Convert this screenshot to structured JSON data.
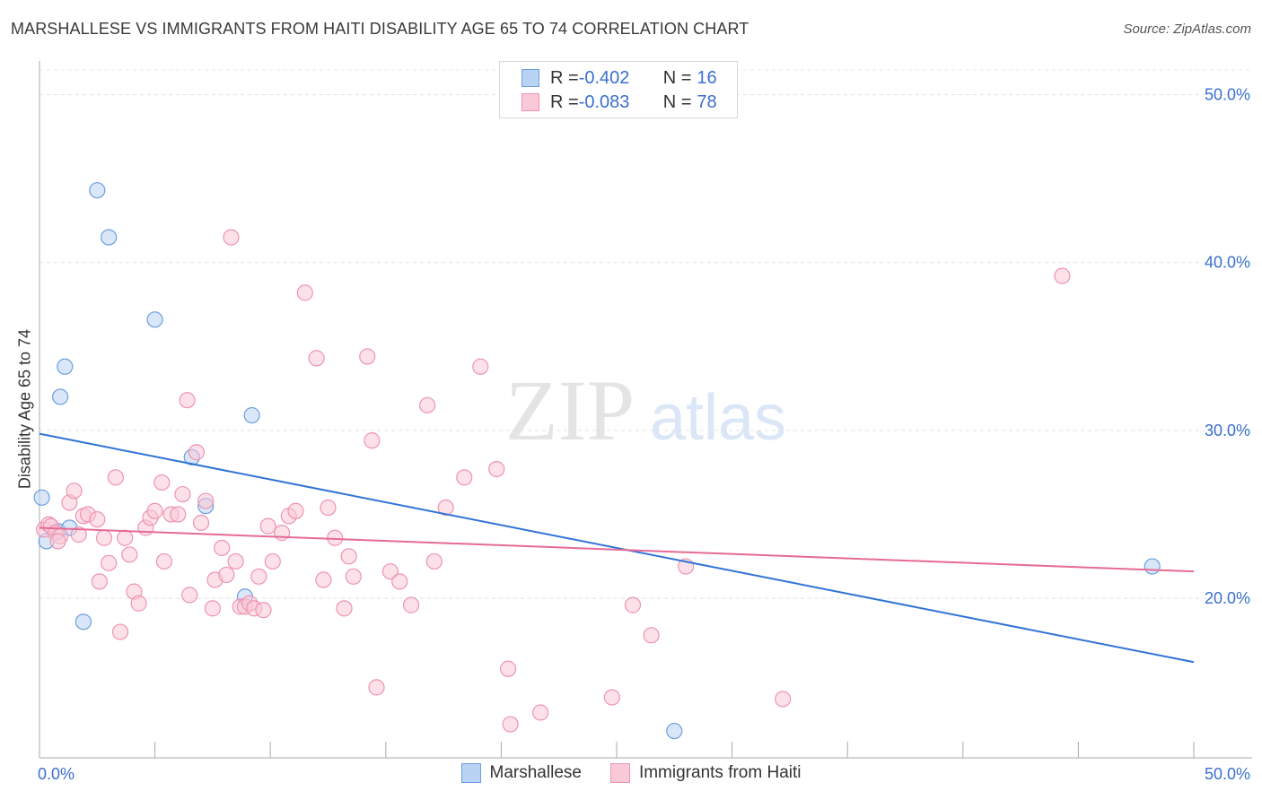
{
  "title": "MARSHALLESE VS IMMIGRANTS FROM HAITI DISABILITY AGE 65 TO 74 CORRELATION CHART",
  "source": "Source: ZipAtlas.com",
  "watermark": {
    "zip": "ZIP",
    "atlas": "atlas"
  },
  "legend": {
    "rows": [
      {
        "r_label": "R = ",
        "r_value": "-0.402",
        "n_label": "N = ",
        "n_value": "16",
        "color": "#a9c8f0",
        "border": "#6d9ee0"
      },
      {
        "r_label": "R = ",
        "r_value": "-0.083",
        "n_label": "N = ",
        "n_value": "78",
        "color": "#f9c4d4",
        "border": "#ee94b0"
      }
    ]
  },
  "chart_data": {
    "type": "scatter",
    "title": "MARSHALLESE VS IMMIGRANTS FROM HAITI DISABILITY AGE 65 TO 74 CORRELATION CHART",
    "xlabel": "",
    "ylabel": "Disability Age 65 to 74",
    "xlim": [
      0,
      50
    ],
    "ylim": [
      10.5,
      52
    ],
    "x_tick_labels": [
      "0.0%",
      "50.0%"
    ],
    "y_ticks": [
      20,
      30,
      40,
      50
    ],
    "y_tick_labels": [
      "20.0%",
      "30.0%",
      "40.0%",
      "50.0%"
    ],
    "grid": true,
    "legend_position": "top-center",
    "series": [
      {
        "name": "Marshallese",
        "color": "#6d9ee0",
        "fill": "#b9d3f4",
        "trend_color": "#3074d6",
        "trend": {
          "x": [
            0,
            50
          ],
          "y": [
            29.8,
            16.2
          ]
        },
        "points": [
          [
            0.1,
            26.0
          ],
          [
            0.3,
            23.4
          ],
          [
            0.8,
            24.0
          ],
          [
            0.9,
            32.0
          ],
          [
            1.1,
            33.8
          ],
          [
            1.3,
            24.2
          ],
          [
            1.9,
            18.6
          ],
          [
            2.5,
            44.3
          ],
          [
            3.0,
            41.5
          ],
          [
            5.0,
            36.6
          ],
          [
            6.6,
            28.4
          ],
          [
            7.2,
            25.5
          ],
          [
            8.9,
            20.1
          ],
          [
            9.2,
            30.9
          ],
          [
            27.5,
            12.1
          ],
          [
            48.2,
            21.9
          ]
        ]
      },
      {
        "name": "Immigrants from Haiti",
        "color": "#ee94b0",
        "fill": "#f9c9d7",
        "trend_color": "#e66a96",
        "trend": {
          "x": [
            0,
            50
          ],
          "y": [
            24.2,
            21.6
          ]
        },
        "points": [
          [
            0.2,
            24.1
          ],
          [
            0.4,
            24.4
          ],
          [
            0.5,
            24.3
          ],
          [
            0.7,
            23.9
          ],
          [
            0.9,
            23.7
          ],
          [
            0.8,
            23.4
          ],
          [
            1.3,
            25.7
          ],
          [
            1.5,
            26.4
          ],
          [
            1.7,
            23.8
          ],
          [
            1.9,
            24.9
          ],
          [
            2.1,
            25.0
          ],
          [
            2.5,
            24.7
          ],
          [
            2.6,
            21.0
          ],
          [
            2.8,
            23.6
          ],
          [
            3.0,
            22.1
          ],
          [
            3.3,
            27.2
          ],
          [
            3.5,
            18.0
          ],
          [
            3.7,
            23.6
          ],
          [
            3.9,
            22.6
          ],
          [
            4.1,
            20.4
          ],
          [
            4.3,
            19.7
          ],
          [
            4.6,
            24.2
          ],
          [
            4.8,
            24.8
          ],
          [
            5.0,
            25.2
          ],
          [
            5.3,
            26.9
          ],
          [
            5.4,
            22.2
          ],
          [
            5.7,
            25.0
          ],
          [
            6.0,
            25.0
          ],
          [
            6.2,
            26.2
          ],
          [
            6.4,
            31.8
          ],
          [
            6.5,
            20.2
          ],
          [
            6.8,
            28.7
          ],
          [
            7.0,
            24.5
          ],
          [
            7.2,
            25.8
          ],
          [
            7.5,
            19.4
          ],
          [
            7.6,
            21.1
          ],
          [
            7.9,
            23.0
          ],
          [
            8.1,
            21.4
          ],
          [
            8.3,
            41.5
          ],
          [
            8.5,
            22.2
          ],
          [
            8.7,
            19.5
          ],
          [
            8.9,
            19.5
          ],
          [
            9.1,
            19.7
          ],
          [
            9.3,
            19.4
          ],
          [
            9.5,
            21.3
          ],
          [
            9.7,
            19.3
          ],
          [
            9.9,
            24.3
          ],
          [
            10.1,
            22.2
          ],
          [
            10.5,
            23.9
          ],
          [
            10.8,
            24.9
          ],
          [
            11.1,
            25.2
          ],
          [
            11.5,
            38.2
          ],
          [
            12.0,
            34.3
          ],
          [
            12.3,
            21.1
          ],
          [
            12.5,
            25.4
          ],
          [
            12.8,
            23.6
          ],
          [
            13.2,
            19.4
          ],
          [
            13.4,
            22.5
          ],
          [
            13.6,
            21.3
          ],
          [
            14.2,
            34.4
          ],
          [
            14.4,
            29.4
          ],
          [
            14.6,
            14.7
          ],
          [
            15.2,
            21.6
          ],
          [
            15.6,
            21.0
          ],
          [
            16.1,
            19.6
          ],
          [
            16.8,
            31.5
          ],
          [
            17.1,
            22.2
          ],
          [
            17.6,
            25.4
          ],
          [
            18.4,
            27.2
          ],
          [
            19.1,
            33.8
          ],
          [
            19.8,
            27.7
          ],
          [
            20.3,
            15.8
          ],
          [
            20.4,
            12.5
          ],
          [
            21.7,
            13.2
          ],
          [
            24.8,
            14.1
          ],
          [
            25.7,
            19.6
          ],
          [
            26.5,
            17.8
          ],
          [
            28.0,
            21.9
          ],
          [
            32.2,
            14.0
          ],
          [
            44.3,
            39.2
          ]
        ]
      }
    ]
  },
  "bottom_legend": [
    {
      "label": "Marshallese",
      "color": "#b9d3f4",
      "border": "#6d9ee0"
    },
    {
      "label": "Immigrants from Haiti",
      "color": "#f9c9d7",
      "border": "#ee94b0"
    }
  ]
}
